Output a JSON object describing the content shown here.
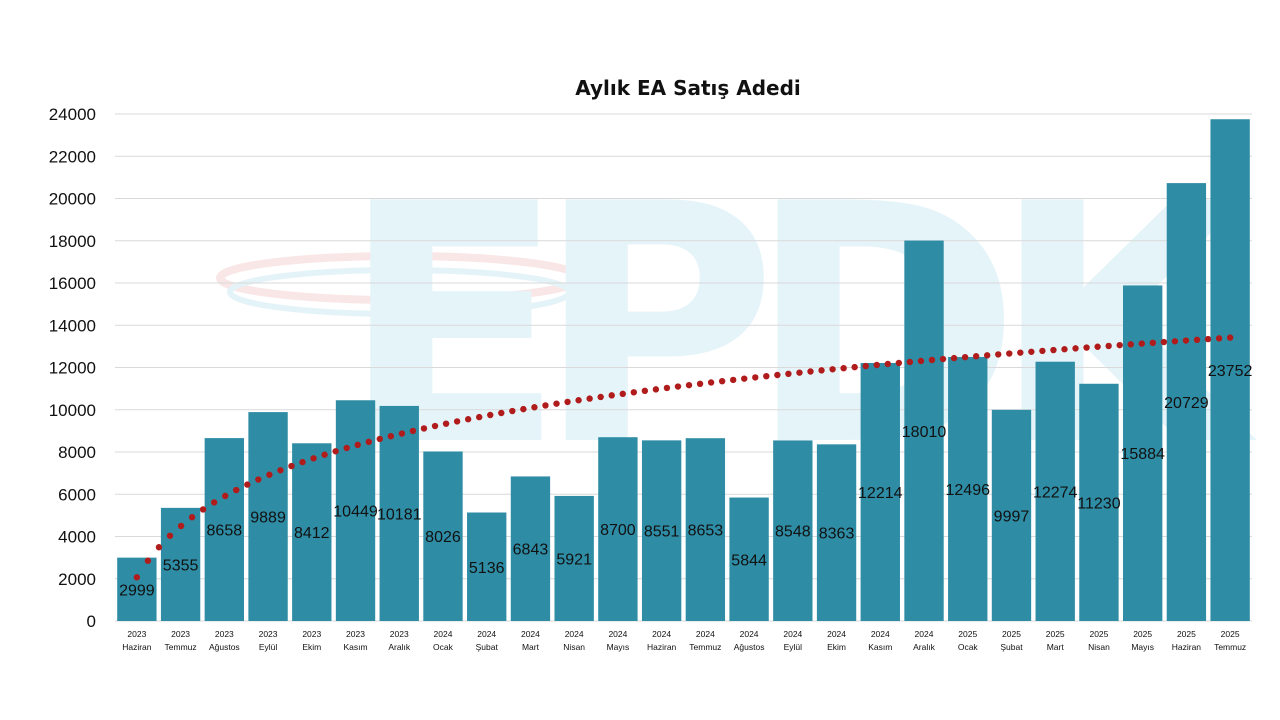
{
  "chart_data": {
    "type": "bar",
    "title": "Aylık EA Satış Adedi",
    "xlabel": "",
    "ylabel": "",
    "ylim": [
      0,
      24000
    ],
    "yticks": [
      0,
      2000,
      4000,
      6000,
      8000,
      10000,
      12000,
      14000,
      16000,
      18000,
      20000,
      22000,
      24000
    ],
    "grid": true,
    "categories": [
      {
        "year": "2023",
        "month": "Haziran"
      },
      {
        "year": "2023",
        "month": "Temmuz"
      },
      {
        "year": "2023",
        "month": "Ağustos"
      },
      {
        "year": "2023",
        "month": "Eylül"
      },
      {
        "year": "2023",
        "month": "Ekim"
      },
      {
        "year": "2023",
        "month": "Kasım"
      },
      {
        "year": "2023",
        "month": "Aralık"
      },
      {
        "year": "2024",
        "month": "Ocak"
      },
      {
        "year": "2024",
        "month": "Şubat"
      },
      {
        "year": "2024",
        "month": "Mart"
      },
      {
        "year": "2024",
        "month": "Nisan"
      },
      {
        "year": "2024",
        "month": "Mayıs"
      },
      {
        "year": "2024",
        "month": "Haziran"
      },
      {
        "year": "2024",
        "month": "Temmuz"
      },
      {
        "year": "2024",
        "month": "Ağustos"
      },
      {
        "year": "2024",
        "month": "Eylül"
      },
      {
        "year": "2024",
        "month": "Ekim"
      },
      {
        "year": "2024",
        "month": "Kasım"
      },
      {
        "year": "2024",
        "month": "Aralık"
      },
      {
        "year": "2025",
        "month": "Ocak"
      },
      {
        "year": "2025",
        "month": "Şubat"
      },
      {
        "year": "2025",
        "month": "Mart"
      },
      {
        "year": "2025",
        "month": "Nisan"
      },
      {
        "year": "2025",
        "month": "Mayıs"
      },
      {
        "year": "2025",
        "month": "Haziran"
      },
      {
        "year": "2025",
        "month": "Temmuz"
      }
    ],
    "values": [
      2999,
      5355,
      8658,
      9889,
      8412,
      10449,
      10181,
      8026,
      5136,
      6843,
      5921,
      8700,
      8551,
      8653,
      5844,
      8548,
      8363,
      12214,
      18010,
      12496,
      9997,
      12274,
      11230,
      15884,
      20729,
      23752
    ],
    "trendline": {
      "type": "logarithmic",
      "style": "dotted",
      "color": "#b01c1c"
    },
    "colors": {
      "bar": "#2e8ca5",
      "trend": "#b01c1c",
      "grid": "#d9d9d9"
    },
    "watermark": "EPDK"
  }
}
